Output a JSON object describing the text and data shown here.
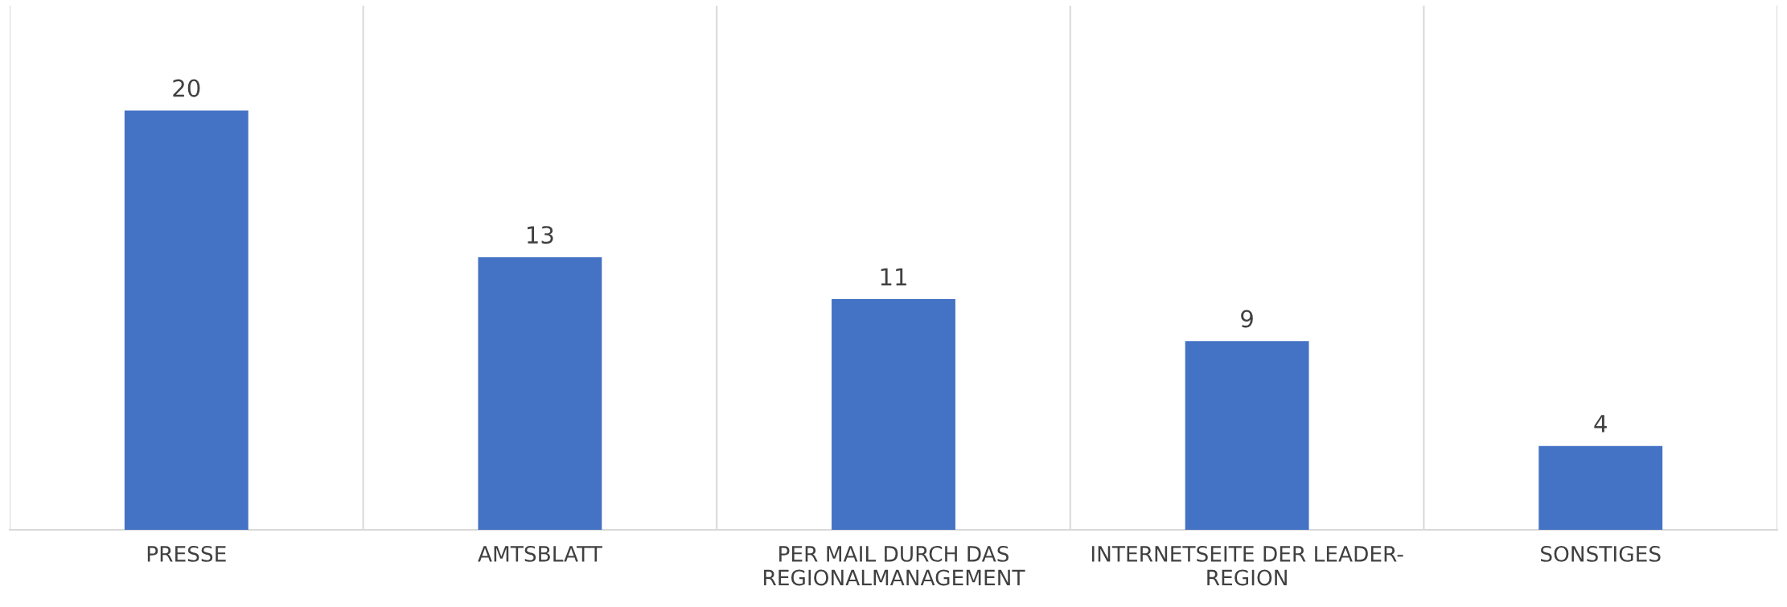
{
  "chart_data": {
    "type": "bar",
    "categories": [
      "PRESSE",
      "AMTSBLATT",
      "PER MAIL DURCH DAS REGIONALMANAGEMENT",
      "INTERNETSEITE DER LEADER-REGION",
      "SONSTIGES"
    ],
    "values": [
      20,
      13,
      11,
      9,
      4
    ],
    "color": "#4472c4",
    "data_labels": true,
    "grid": "x"
  }
}
